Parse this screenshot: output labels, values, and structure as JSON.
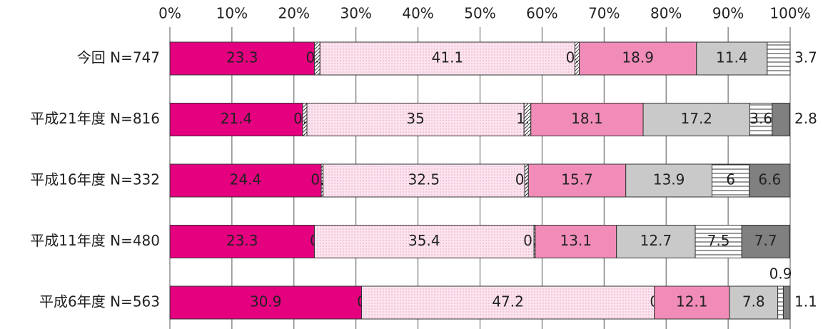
{
  "chart_data": {
    "type": "stacked-barh",
    "categories": [
      "今回 N=747",
      "平成21年度 N=816",
      "平成16年度 N=332",
      "平成11年度 N=480",
      "平成6年度 N=563"
    ],
    "series": [
      {
        "color": "#e4007f",
        "values": [
          23.3,
          21.4,
          24.4,
          23.3,
          30.9
        ]
      },
      {
        "color": "#ffffff",
        "pattern": "diag",
        "values": [
          0.9,
          0.7,
          0.3,
          0.0,
          0.0
        ]
      },
      {
        "color": "#fbe4ef",
        "pattern": "dots",
        "values": [
          41.1,
          35.0,
          32.5,
          35.4,
          47.2
        ]
      },
      {
        "color": "#ffffff",
        "pattern": "diag",
        "values": [
          0.7,
          1.1,
          0.6,
          0.2,
          0.0
        ]
      },
      {
        "color": "#f18cb8",
        "values": [
          18.9,
          18.1,
          15.7,
          13.1,
          12.1
        ]
      },
      {
        "color": "#c9c9c9",
        "values": [
          11.4,
          17.2,
          13.9,
          12.7,
          7.8
        ]
      },
      {
        "color": "#ffffff",
        "pattern": "hlines",
        "values": [
          3.7,
          3.6,
          6.0,
          7.5,
          0.9
        ]
      },
      {
        "color": "#808080",
        "values": [
          null,
          2.8,
          6.6,
          7.7,
          1.1
        ]
      }
    ],
    "xlim": [
      0,
      100
    ],
    "xticks": [
      {
        "value": 0,
        "label": "0%"
      },
      {
        "value": 10,
        "label": "10%"
      },
      {
        "value": 20,
        "label": "20%"
      },
      {
        "value": 30,
        "label": "30%"
      },
      {
        "value": 40,
        "label": "40%"
      },
      {
        "value": 50,
        "label": "50%"
      },
      {
        "value": 60,
        "label": "60%"
      },
      {
        "value": 70,
        "label": "70%"
      },
      {
        "value": 80,
        "label": "80%"
      },
      {
        "value": 90,
        "label": "90%"
      },
      {
        "value": 100,
        "label": "100%"
      }
    ],
    "grid": true
  }
}
